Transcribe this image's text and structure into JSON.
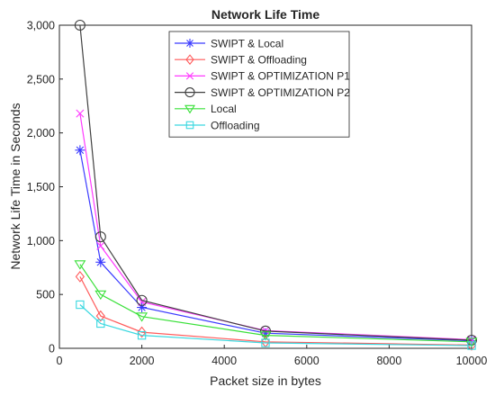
{
  "chart_data": {
    "type": "line",
    "title": "Network Life Time",
    "xlabel": "Packet size in bytes",
    "ylabel": "Network Life Time in Seconds",
    "xlim": [
      0,
      10000
    ],
    "ylim": [
      0,
      3000
    ],
    "xticks": [
      0,
      2000,
      4000,
      6000,
      8000,
      10000
    ],
    "yticks": [
      0,
      500,
      1000,
      1500,
      2000,
      2500,
      3000
    ],
    "x": [
      500,
      1000,
      2000,
      5000,
      10000
    ],
    "grid": false,
    "legend_position": "top-right",
    "series": [
      {
        "name": "SWIPT & Local",
        "values": [
          1840,
          800,
          380,
          140,
          70
        ],
        "color": "#3a3aff",
        "marker": "asterisk"
      },
      {
        "name": "SWIPT & Offloading",
        "values": [
          665,
          300,
          150,
          60,
          30
        ],
        "color": "#ff5a5a",
        "marker": "diamond"
      },
      {
        "name": "SWIPT & OPTIMIZATION P1",
        "values": [
          2180,
          950,
          430,
          165,
          80
        ],
        "color": "#ff3aff",
        "marker": "x"
      },
      {
        "name": "SWIPT & OPTIMIZATION P2",
        "values": [
          3000,
          1035,
          445,
          160,
          75
        ],
        "color": "#404040",
        "marker": "circle"
      },
      {
        "name": "Local",
        "values": [
          780,
          500,
          295,
          120,
          60
        ],
        "color": "#39e039",
        "marker": "triangle-down"
      },
      {
        "name": "Offloading",
        "values": [
          405,
          230,
          120,
          50,
          25
        ],
        "color": "#3ad8e0",
        "marker": "square"
      }
    ]
  }
}
